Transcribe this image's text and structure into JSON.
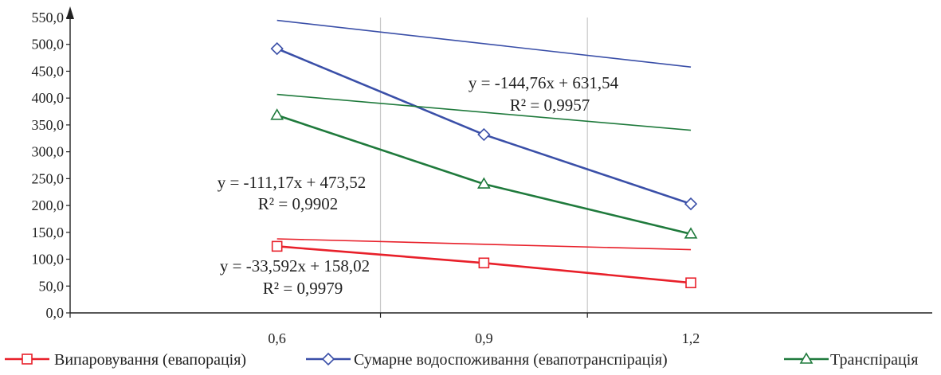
{
  "chart_data": {
    "type": "line",
    "x": [
      0.6,
      0.9,
      1.2
    ],
    "x_tick_labels": [
      "0,6",
      "0,9",
      "1,2"
    ],
    "y_tick_labels": [
      "0,0",
      "50,0",
      "100,0",
      "150,0",
      "200,0",
      "250,0",
      "300,0",
      "350,0",
      "400,0",
      "450,0",
      "500,0",
      "550,0"
    ],
    "ylim": [
      0,
      550
    ],
    "xlim": [
      0.3,
      1.55
    ],
    "grid": true,
    "legend_position": "bottom",
    "series": [
      {
        "name": "Випаровування (евапорація)",
        "values": [
          124,
          93,
          56
        ],
        "color": "#e8202a",
        "marker": "square",
        "trend": {
          "slope": -33.592,
          "intercept": 158.02,
          "equation": "y = -33,592x + 158,02",
          "r2": "R² = 0,9979"
        }
      },
      {
        "name": "Сумарне водоспоживання (евапотранспірація)",
        "values": [
          492,
          332,
          203
        ],
        "color": "#3a4fa8",
        "marker": "diamond",
        "trend": {
          "slope": -144.76,
          "intercept": 631.54,
          "equation": "y = -144,76x + 631,54",
          "r2": "R² = 0,9957"
        }
      },
      {
        "name": "Транспірація",
        "values": [
          368,
          240,
          147
        ],
        "color": "#1f7a3c",
        "marker": "triangle",
        "trend": {
          "slope": -111.17,
          "intercept": 473.52,
          "equation": "y = -111,17x + 473,52",
          "r2": "R² = 0,9902"
        }
      }
    ]
  }
}
